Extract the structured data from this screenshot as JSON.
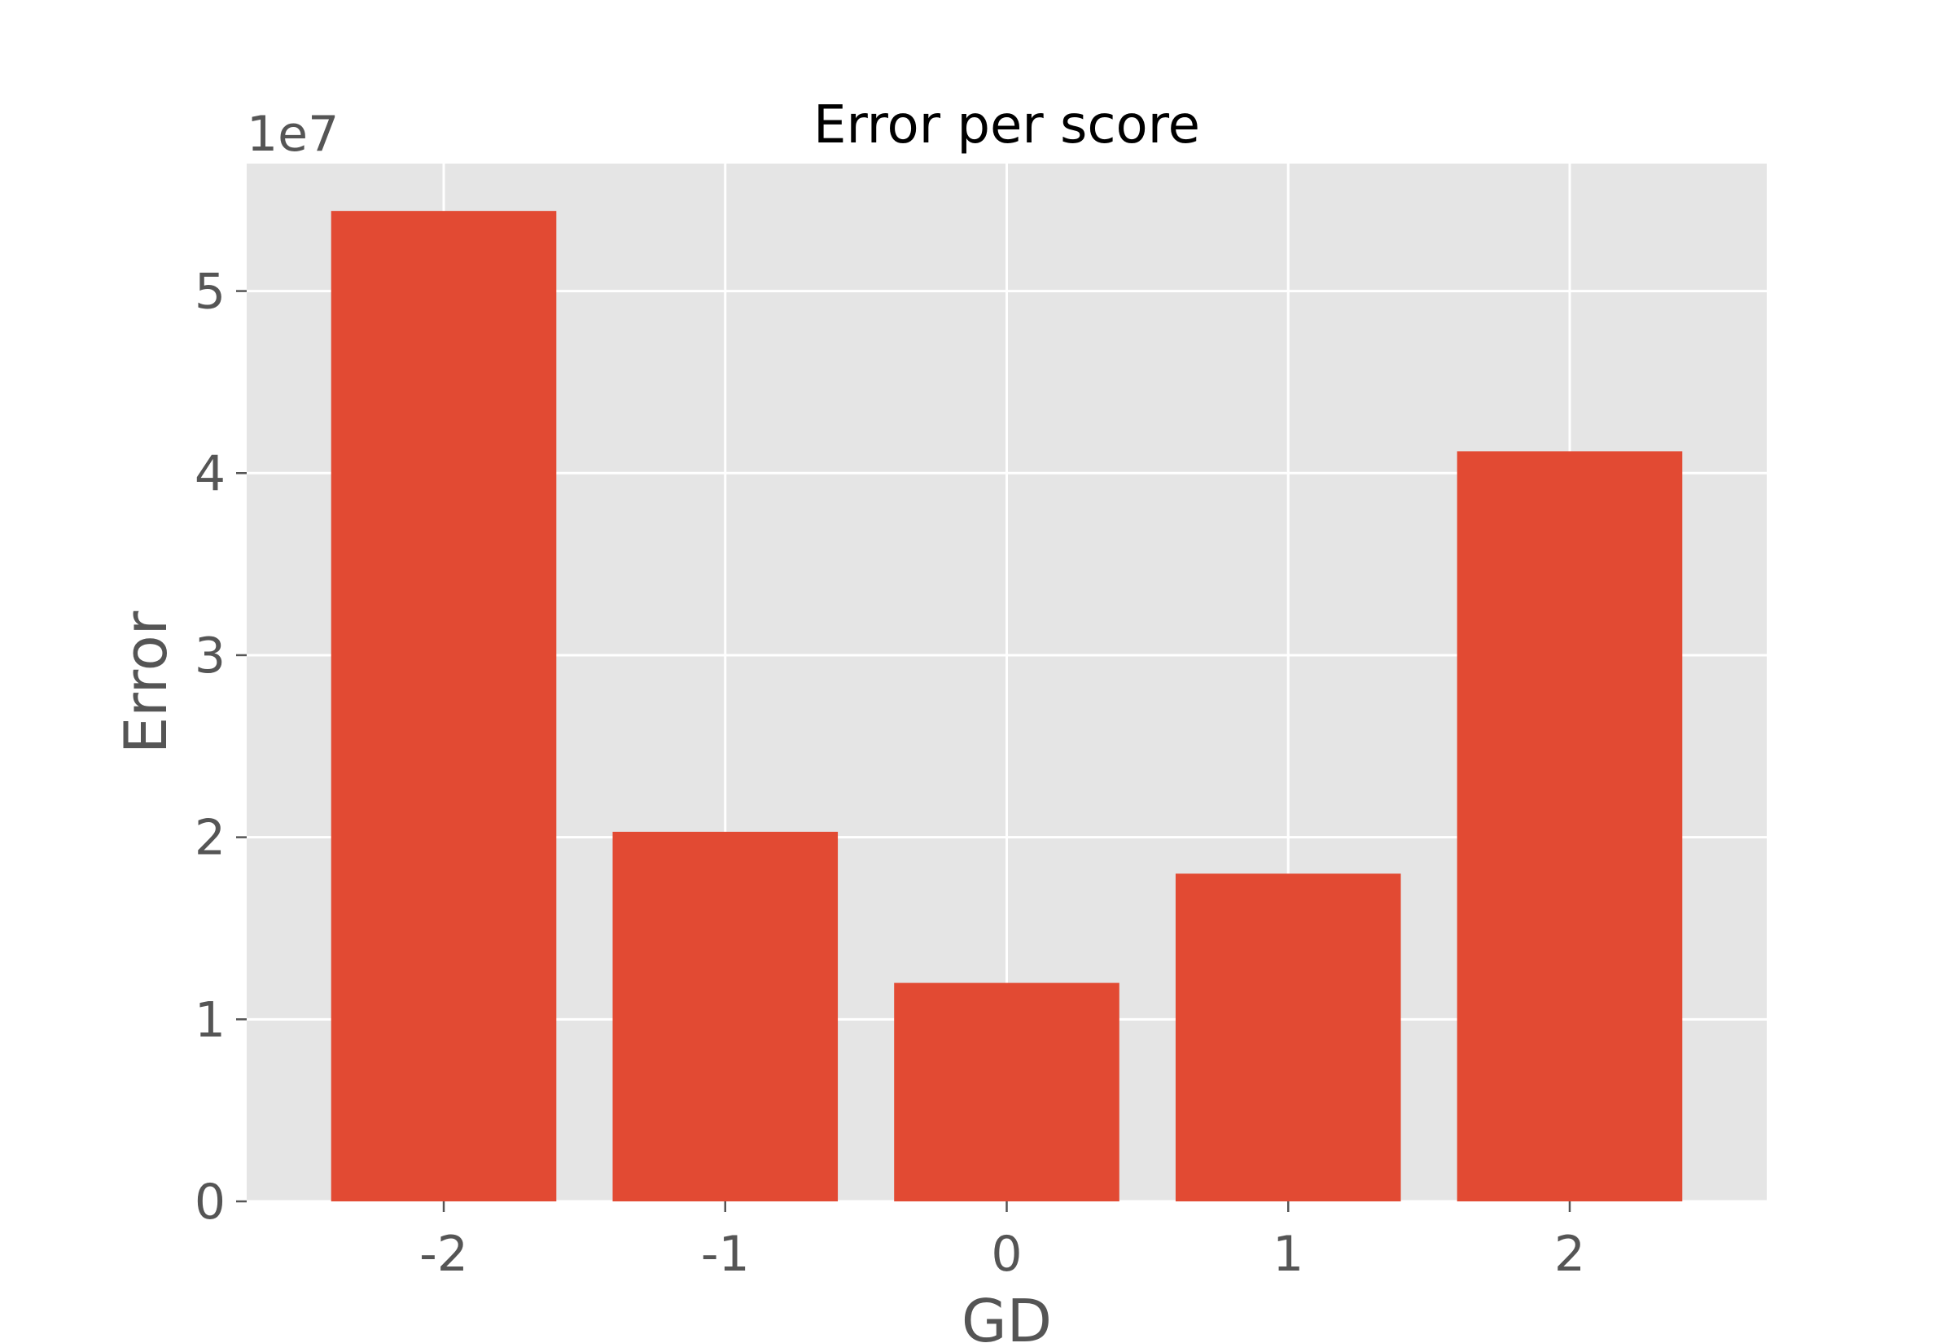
{
  "chart_data": {
    "type": "bar",
    "title": "Error per score",
    "xlabel": "GD",
    "ylabel": "Error",
    "y_offset_label": "1e7",
    "categories": [
      "-2",
      "-1",
      "0",
      "1",
      "2"
    ],
    "values": [
      54400000,
      20300000,
      12000000,
      18000000,
      41200000
    ],
    "ylim": [
      0,
      57000000
    ],
    "yticks": [
      0,
      10000000,
      20000000,
      30000000,
      40000000,
      50000000
    ],
    "ytick_labels": [
      "0",
      "1",
      "2",
      "3",
      "4",
      "5"
    ],
    "grid": true,
    "legend": "none",
    "bar_color": "#E24A33",
    "background_color": "#E5E5E5",
    "grid_color": "#FFFFFF"
  }
}
